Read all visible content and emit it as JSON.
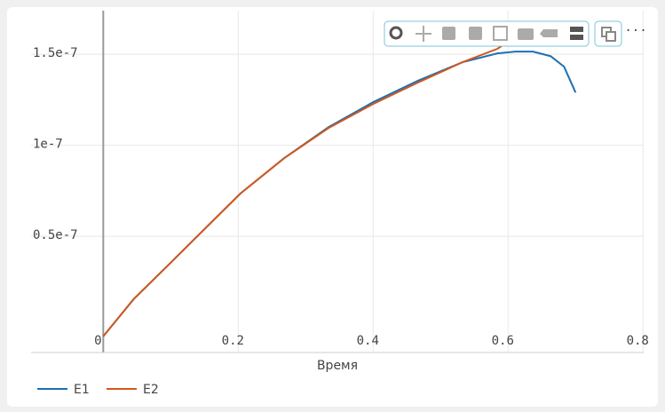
{
  "chart_data": {
    "type": "line",
    "x_label": "Время",
    "xlim": [
      -0.107,
      0.801
    ],
    "xticks": [
      0,
      0.2,
      0.4,
      0.6,
      0.8
    ],
    "ylim": [
      -1.39e-08,
      1.74e-07
    ],
    "yticks": [
      {
        "value": 5e-08,
        "label": "0.5e-7"
      },
      {
        "value": 1e-07,
        "label": "1e-7"
      },
      {
        "value": 1.5e-07,
        "label": "1.5e-7"
      }
    ],
    "grid": true,
    "legend": "bottom-left",
    "series": [
      {
        "name": "E1",
        "color": "#1f6fb2",
        "x": [
          0,
          0.045,
          0.097,
          0.15,
          0.203,
          0.268,
          0.334,
          0.4,
          0.466,
          0.532,
          0.584,
          0.611,
          0.637,
          0.663,
          0.683,
          0.7
        ],
        "values": [
          -5e-09,
          1.54e-08,
          3.44e-08,
          5.39e-08,
          7.34e-08,
          9.29e-08,
          1.1e-07,
          1.237e-07,
          1.354e-07,
          1.456e-07,
          1.505e-07,
          1.515e-07,
          1.515e-07,
          1.49e-07,
          1.432e-07,
          1.29e-07
        ]
      },
      {
        "name": "E2",
        "color": "#d0581e",
        "x": [
          0,
          0.045,
          0.097,
          0.15,
          0.203,
          0.268,
          0.334,
          0.4,
          0.466,
          0.532,
          0.584,
          0.592
        ],
        "values": [
          -5e-09,
          1.54e-08,
          3.44e-08,
          5.39e-08,
          7.34e-08,
          9.29e-08,
          1.095e-07,
          1.227e-07,
          1.344e-07,
          1.456e-07,
          1.53e-07,
          1.549e-07
        ]
      }
    ]
  }
}
